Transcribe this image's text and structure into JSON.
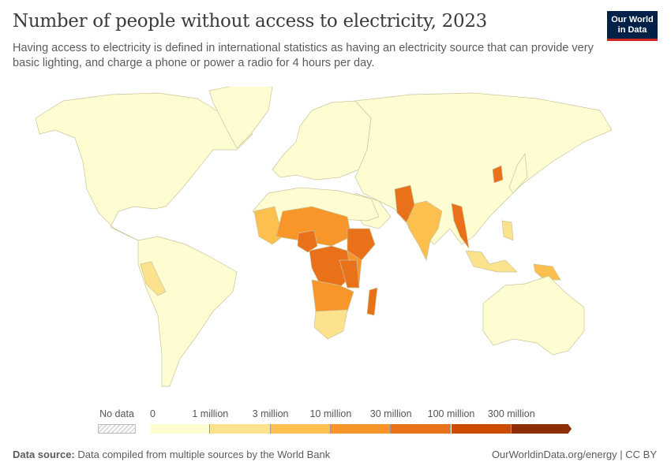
{
  "header": {
    "title": "Number of people without access to electricity, 2023",
    "subtitle": "Having access to electricity is defined in international statistics as having an electricity source that can provide very basic lighting, and charge a phone or power a radio for 4 hours per day."
  },
  "logo": {
    "line1": "Our World",
    "line2": "in Data",
    "bg": "#002147",
    "accent": "#ce261e"
  },
  "legend": {
    "no_data_label": "No data",
    "labels": [
      "0",
      "1 million",
      "3 million",
      "10 million",
      "30 million",
      "100 million",
      "300 million"
    ],
    "bin_colors": [
      "#fefdd2",
      "#fde28e",
      "#fdbf4e",
      "#f9962a",
      "#e9711a",
      "#cc4c02",
      "#8f2d04"
    ]
  },
  "map": {
    "land_color": "#fefdd2",
    "border_color": "#c9c49a",
    "ocean_color": "#ffffff"
  },
  "footer": {
    "source_label": "Data source:",
    "source_text": "Data compiled from multiple sources by the World Bank",
    "url": "OurWorldinData.org/energy | CC BY"
  }
}
